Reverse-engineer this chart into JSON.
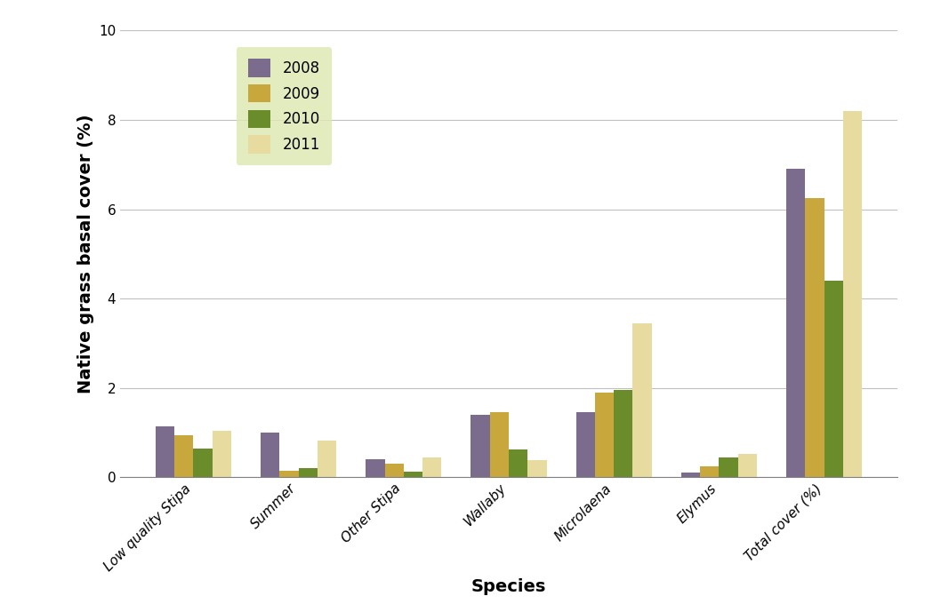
{
  "categories": [
    "Low quality Stipa",
    "Summer",
    "Other Stipa",
    "Wallaby",
    "Microlaena",
    "Elymus",
    "Total cover (%)"
  ],
  "series": {
    "2008": [
      1.15,
      1.0,
      0.4,
      1.4,
      1.45,
      0.1,
      6.9
    ],
    "2009": [
      0.95,
      0.15,
      0.3,
      1.45,
      1.9,
      0.25,
      6.25
    ],
    "2010": [
      0.65,
      0.2,
      0.12,
      0.63,
      1.95,
      0.45,
      4.4
    ],
    "2011": [
      1.05,
      0.82,
      0.45,
      0.38,
      3.45,
      0.52,
      8.2
    ]
  },
  "colors": {
    "2008": "#7b6b8d",
    "2009": "#c8a83c",
    "2010": "#6b8c2a",
    "2011": "#e8dba0"
  },
  "legend_bg": "#dde8b0",
  "ylabel": "Native grass basal cover (%)",
  "xlabel": "Species",
  "ylim": [
    0,
    10
  ],
  "yticks": [
    0,
    2,
    4,
    6,
    8,
    10
  ],
  "bar_width": 0.18,
  "label_fontsize": 14,
  "tick_fontsize": 11,
  "legend_fontsize": 12,
  "fig_bg": "#ffffff"
}
